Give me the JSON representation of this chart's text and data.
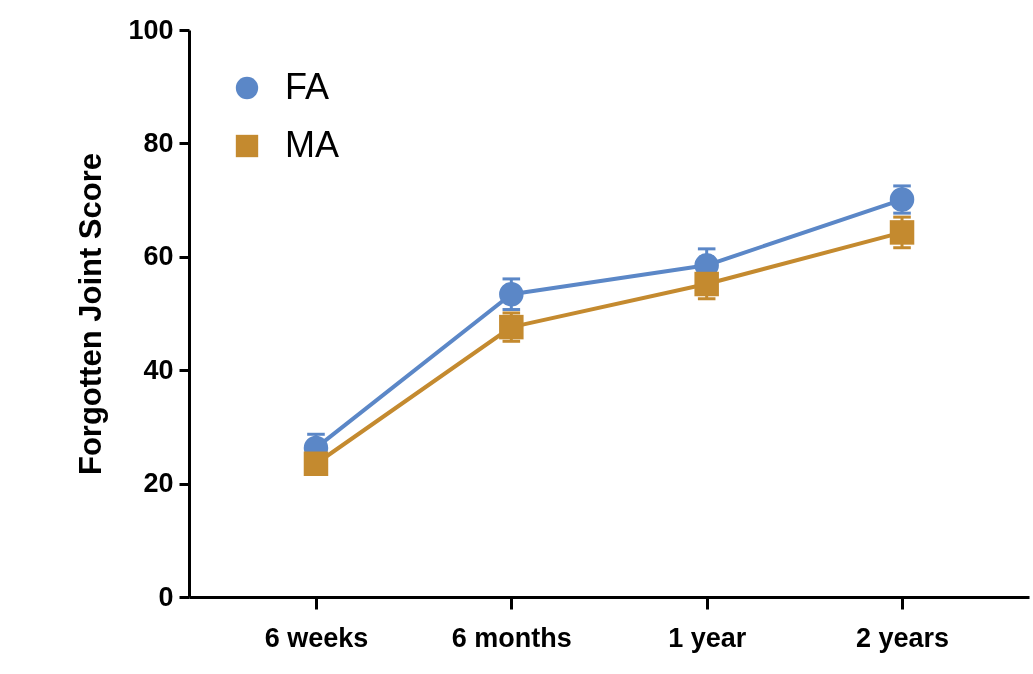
{
  "chart_data": {
    "type": "line",
    "ylabel": "Forgotten Joint Score",
    "categories": [
      "6 weeks",
      "6 months",
      "1 year",
      "2 years"
    ],
    "series": [
      {
        "name": "FA",
        "color": "#5b87c7",
        "marker": "circle",
        "values": [
          26.3,
          53.4,
          58.5,
          70.1
        ],
        "errors": [
          2.4,
          2.7,
          2.9,
          2.4
        ]
      },
      {
        "name": "MA",
        "color": "#c48a2f",
        "marker": "square",
        "values": [
          23.5,
          47.6,
          55.2,
          64.3
        ],
        "errors": [
          1.5,
          2.5,
          2.6,
          2.7
        ]
      }
    ],
    "ylim": [
      0,
      100
    ],
    "yticks": [
      0,
      20,
      40,
      60,
      80,
      100
    ],
    "grid": false,
    "legend": "top left"
  }
}
